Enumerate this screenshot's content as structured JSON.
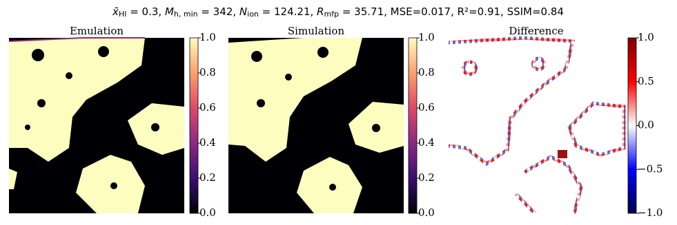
{
  "title_parts": [
    {
      "t": "x̄",
      "style": "i"
    },
    {
      "t": "HI",
      "style": "sub"
    },
    {
      "t": " = 0.3, ",
      "style": "n"
    },
    {
      "t": "M",
      "style": "i"
    },
    {
      "t": "h, min",
      "style": "sub"
    },
    {
      "t": " = 342, ",
      "style": "n"
    },
    {
      "t": "N",
      "style": "i"
    },
    {
      "t": "ion",
      "style": "sub"
    },
    {
      "t": " = 124.21, ",
      "style": "n"
    },
    {
      "t": "R",
      "style": "i"
    },
    {
      "t": "mfp",
      "style": "sub"
    },
    {
      "t": " = 35.71, MSE=0.017, R²=0.91, SSIM=0.84",
      "style": "n"
    }
  ],
  "chart_data": [
    {
      "type": "heatmap",
      "title": "Emulation",
      "cmap": [
        "#000004",
        "#3b0f70",
        "#8c2981",
        "#de4968",
        "#fe9f6d",
        "#fcfdbf"
      ],
      "clim": [
        0,
        1
      ],
      "cticks": [
        {
          "value": 0,
          "label": "0.0"
        },
        {
          "value": 0.2,
          "label": "0.2"
        },
        {
          "value": 0.4,
          "label": "0.4"
        },
        {
          "value": 0.6,
          "label": "0.6"
        },
        {
          "value": 0.8,
          "label": "0.8"
        },
        {
          "value": 1,
          "label": "1.0"
        }
      ]
    },
    {
      "type": "heatmap",
      "title": "Simulation",
      "cmap": [
        "#000004",
        "#3b0f70",
        "#8c2981",
        "#de4968",
        "#fe9f6d",
        "#fcfdbf"
      ],
      "clim": [
        0,
        1
      ],
      "cticks": [
        {
          "value": 0,
          "label": "0.0"
        },
        {
          "value": 0.2,
          "label": "0.2"
        },
        {
          "value": 0.4,
          "label": "0.4"
        },
        {
          "value": 0.6,
          "label": "0.6"
        },
        {
          "value": 0.8,
          "label": "0.8"
        },
        {
          "value": 1,
          "label": "1.0"
        }
      ]
    },
    {
      "type": "heatmap",
      "title": "Difference",
      "cmap": [
        "#00004c",
        "#0000ff",
        "#ffffff",
        "#ff0000",
        "#800000"
      ],
      "clim": [
        -1,
        1
      ],
      "cticks": [
        {
          "value": -1,
          "label": "−1.0"
        },
        {
          "value": -0.5,
          "label": "−0.5"
        },
        {
          "value": 0,
          "label": "0.0"
        },
        {
          "value": 0.5,
          "label": "0.5"
        },
        {
          "value": 1,
          "label": "1.0"
        }
      ]
    }
  ]
}
